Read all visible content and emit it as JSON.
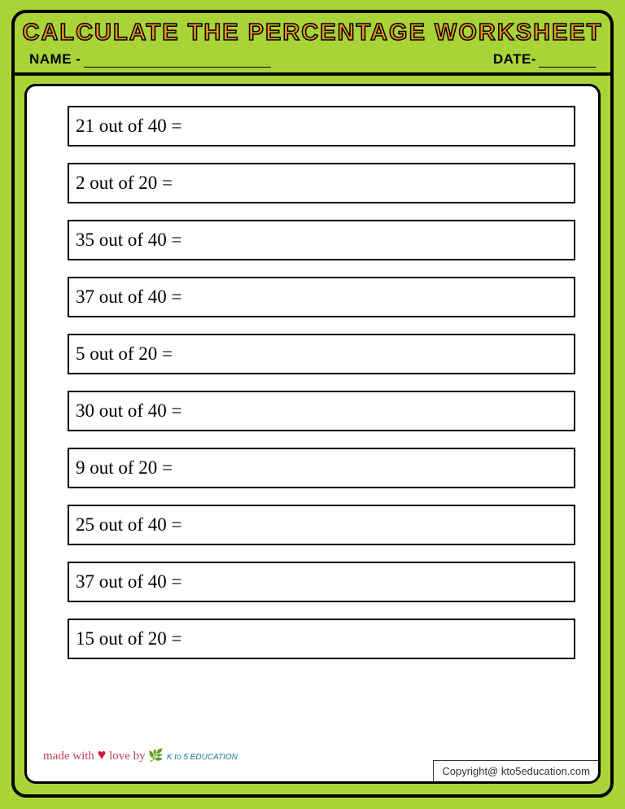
{
  "title": "CALCULATE THE PERCENTAGE WORKSHEET",
  "labels": {
    "name": "NAME -",
    "date": "DATE-"
  },
  "problems": [
    "21 out of 40 =",
    "2 out of 20 =",
    "35 out of 40 =",
    "37 out of 40 =",
    "5 out of 20 =",
    "30 out of 40 =",
    "9 out of 20 =",
    "25 out of 40 =",
    "37 out of 40 =",
    "15 out of 20 ="
  ],
  "footer": {
    "made_with": "made with",
    "love": "love",
    "by": "by",
    "brand": "K to 5 EDUCATION",
    "copyright": "Copyright@ kto5education.com"
  },
  "colors": {
    "background": "#a9d438",
    "title_fill": "#e8941e",
    "title_stroke": "#000000",
    "border": "#000000",
    "content_bg": "#ffffff"
  },
  "typography": {
    "title_fontsize": 29,
    "problem_fontsize": 23,
    "label_fontsize": 17
  }
}
